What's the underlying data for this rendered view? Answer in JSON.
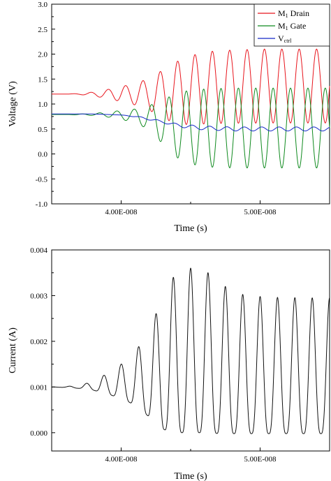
{
  "chart_data": [
    {
      "type": "line",
      "xlabel": "Time (s)",
      "ylabel": "Voltage (V)",
      "xlim": [
        3.5e-08,
        5.5e-08
      ],
      "ylim": [
        -1.0,
        3.0
      ],
      "xticks": [
        {
          "value": 4e-08,
          "label": "4.00E-008"
        },
        {
          "value": 5e-08,
          "label": "5.00E-008"
        }
      ],
      "yticks": [
        {
          "value": -1.0,
          "label": "-1.0"
        },
        {
          "value": -0.5,
          "label": "-0.5"
        },
        {
          "value": 0.0,
          "label": "0.0"
        },
        {
          "value": 0.5,
          "label": "0.5"
        },
        {
          "value": 1.0,
          "label": "1.0"
        },
        {
          "value": 1.5,
          "label": "1.5"
        },
        {
          "value": 2.0,
          "label": "2.0"
        },
        {
          "value": 2.5,
          "label": "2.5"
        },
        {
          "value": 3.0,
          "label": "3.0"
        }
      ],
      "grid": false,
      "legend": "top-right",
      "series": [
        {
          "name": "M1 Drain",
          "name_main": "M",
          "name_sub": "1",
          "name_rest": " Drain",
          "color": "#e8141c",
          "x": [
            3.5e-08,
            3.6e-08,
            3.7e-08,
            3.8e-08,
            3.9e-08,
            4e-08,
            4.05e-08,
            4.1e-08,
            4.15e-08,
            4.2e-08,
            4.25e-08,
            4.3e-08,
            4.35e-08,
            4.4e-08,
            4.45e-08,
            4.5e-08,
            4.55e-08,
            4.6e-08,
            4.7e-08,
            4.8e-08,
            4.9e-08,
            5e-08,
            5.1e-08,
            5.2e-08,
            5.3e-08,
            5.4e-08,
            5.5e-08
          ],
          "center": [
            1.2,
            1.2,
            1.2,
            1.2,
            1.2,
            1.2,
            1.2,
            1.2,
            1.2,
            1.2,
            1.2,
            1.2,
            1.21,
            1.23,
            1.25,
            1.28,
            1.3,
            1.32,
            1.34,
            1.35,
            1.35,
            1.36,
            1.36,
            1.36,
            1.36,
            1.36,
            1.36
          ],
          "amplitude": [
            0.0,
            0.0,
            0.01,
            0.04,
            0.09,
            0.15,
            0.18,
            0.22,
            0.26,
            0.32,
            0.4,
            0.48,
            0.55,
            0.62,
            0.66,
            0.69,
            0.7,
            0.72,
            0.73,
            0.73,
            0.74,
            0.74,
            0.74,
            0.74,
            0.74,
            0.74,
            0.74
          ],
          "cycle_period": 1.25e-09,
          "phase": 0.0
        },
        {
          "name": "M1 Gate",
          "name_main": "M",
          "name_sub": "1",
          "name_rest": " Gate",
          "color": "#0f8a1e",
          "x": [
            3.5e-08,
            3.6e-08,
            3.7e-08,
            3.8e-08,
            3.9e-08,
            4e-08,
            4.05e-08,
            4.1e-08,
            4.15e-08,
            4.2e-08,
            4.25e-08,
            4.3e-08,
            4.35e-08,
            4.4e-08,
            4.45e-08,
            4.5e-08,
            4.55e-08,
            4.6e-08,
            4.7e-08,
            4.8e-08,
            4.9e-08,
            5e-08,
            5.1e-08,
            5.2e-08,
            5.3e-08,
            5.4e-08,
            5.5e-08
          ],
          "center": [
            0.79,
            0.79,
            0.79,
            0.79,
            0.79,
            0.78,
            0.77,
            0.76,
            0.74,
            0.72,
            0.68,
            0.64,
            0.6,
            0.57,
            0.55,
            0.54,
            0.53,
            0.52,
            0.52,
            0.52,
            0.52,
            0.52,
            0.52,
            0.52,
            0.52,
            0.52,
            0.52
          ],
          "amplitude": [
            0.0,
            0.0,
            0.01,
            0.02,
            0.05,
            0.09,
            0.11,
            0.14,
            0.18,
            0.25,
            0.34,
            0.44,
            0.55,
            0.64,
            0.7,
            0.74,
            0.76,
            0.78,
            0.79,
            0.8,
            0.8,
            0.8,
            0.8,
            0.8,
            0.8,
            0.8,
            0.8
          ],
          "cycle_period": 1.25e-09,
          "phase": 3.14159
        },
        {
          "name": "Vctrl",
          "name_main": "V",
          "name_sub": "ctrl",
          "name_rest": "",
          "color": "#1428c8",
          "x": [
            3.5e-08,
            3.6e-08,
            3.7e-08,
            3.8e-08,
            3.9e-08,
            4e-08,
            4.1e-08,
            4.2e-08,
            4.3e-08,
            4.4e-08,
            4.5e-08,
            4.6e-08,
            4.7e-08,
            4.8e-08,
            4.9e-08,
            5e-08,
            5.1e-08,
            5.2e-08,
            5.3e-08,
            5.4e-08,
            5.5e-08
          ],
          "center": [
            0.8,
            0.8,
            0.8,
            0.8,
            0.79,
            0.78,
            0.75,
            0.7,
            0.64,
            0.58,
            0.54,
            0.52,
            0.51,
            0.5,
            0.5,
            0.5,
            0.5,
            0.5,
            0.5,
            0.5,
            0.5
          ],
          "amplitude": [
            0.0,
            0.0,
            0.0,
            0.0,
            0.0,
            0.0,
            0.01,
            0.02,
            0.02,
            0.03,
            0.04,
            0.04,
            0.04,
            0.04,
            0.04,
            0.04,
            0.04,
            0.04,
            0.04,
            0.04,
            0.04
          ],
          "cycle_period": 1.25e-09,
          "phase": 1.0
        }
      ]
    },
    {
      "type": "line",
      "xlabel": "Time (s)",
      "ylabel": "Current (A)",
      "xlim": [
        3.5e-08,
        5.5e-08
      ],
      "ylim": [
        -0.0004,
        0.004
      ],
      "xticks": [
        {
          "value": 4e-08,
          "label": "4.00E-008"
        },
        {
          "value": 5e-08,
          "label": "5.00E-008"
        }
      ],
      "yticks": [
        {
          "value": 0.0,
          "label": "0.000"
        },
        {
          "value": 0.001,
          "label": "0.001"
        },
        {
          "value": 0.002,
          "label": "0.002"
        },
        {
          "value": 0.003,
          "label": "0.003"
        },
        {
          "value": 0.004,
          "label": "0.004"
        }
      ],
      "grid": false,
      "series": [
        {
          "color": "#111111",
          "x": [
            3.5e-08,
            3.6e-08,
            3.7e-08,
            3.8e-08,
            3.9e-08,
            4e-08,
            4.05e-08,
            4.1e-08,
            4.15e-08,
            4.2e-08,
            4.25e-08,
            4.3e-08,
            4.35e-08,
            4.4e-08,
            4.45e-08,
            4.5e-08,
            4.55e-08,
            4.6e-08,
            4.65e-08,
            4.7e-08,
            4.8e-08,
            4.9e-08,
            5e-08,
            5.1e-08,
            5.2e-08,
            5.3e-08,
            5.4e-08,
            5.5e-08
          ],
          "peak": [
            0.001,
            0.00101,
            0.00104,
            0.00112,
            0.0013,
            0.0015,
            0.00162,
            0.00178,
            0.00198,
            0.00225,
            0.0026,
            0.003,
            0.0033,
            0.0035,
            0.00358,
            0.0036,
            0.0036,
            0.00355,
            0.00345,
            0.0033,
            0.0031,
            0.003,
            0.00298,
            0.00296,
            0.00296,
            0.00295,
            0.00295,
            0.00295
          ],
          "trough": [
            0.001,
            0.00099,
            0.00097,
            0.00093,
            0.00085,
            0.00075,
            0.00068,
            0.0006,
            0.00048,
            0.00035,
            0.0002,
            8e-05,
            2e-05,
            0.0,
            0.0,
            0.0,
            0.0,
            0.0,
            0.0,
            -2e-05,
            -2e-05,
            -2e-05,
            -2e-05,
            -2e-05,
            -2e-05,
            -2e-05,
            -2e-05,
            -2e-05
          ],
          "cycle_period": 1.25e-09
        }
      ]
    }
  ]
}
